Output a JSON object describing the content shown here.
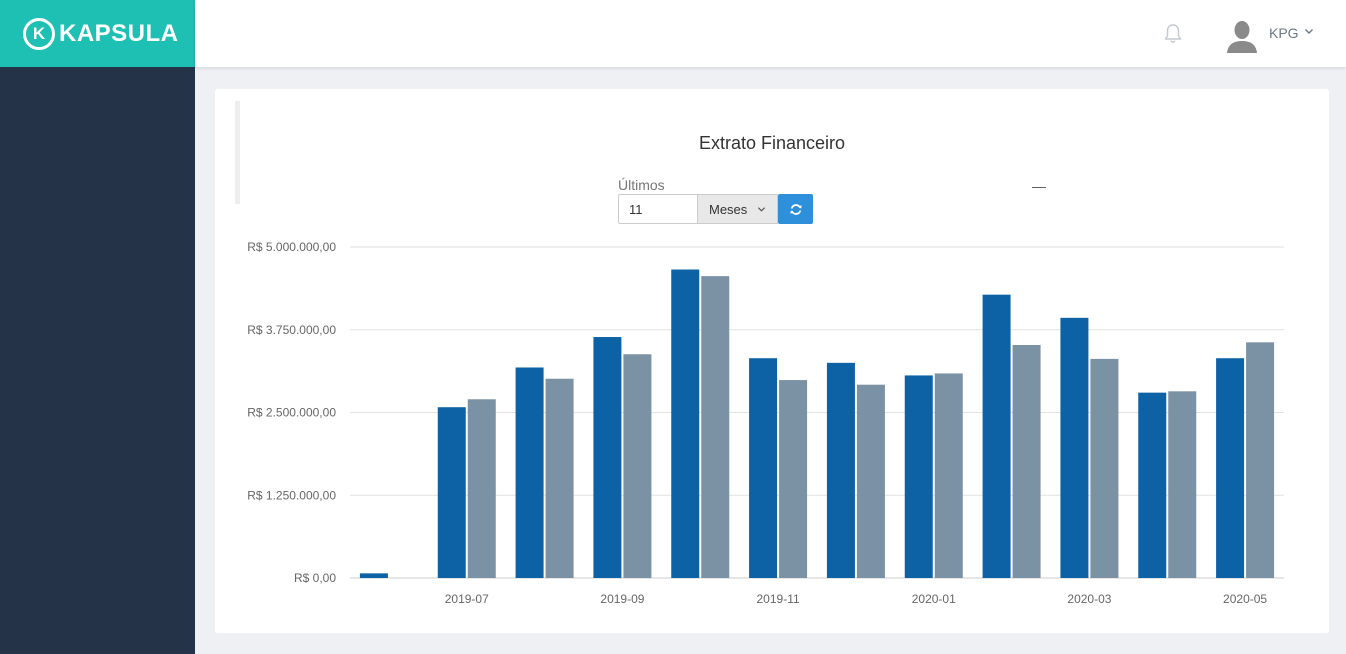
{
  "brand": {
    "name": "KAPSULA",
    "mark": "K"
  },
  "header": {
    "user": "KPG"
  },
  "filters": {
    "label": "Últimos",
    "months_value": "11",
    "unit_selected": "Meses",
    "range_separator": "—"
  },
  "colors": {
    "series_primary": "#0d62a6",
    "series_secondary": "#7b91a4",
    "teal": "#1fc0b4",
    "sidebar": "#253349",
    "refresh": "#2e8fdb"
  },
  "icons": {
    "notifications": "bell-icon",
    "user": "avatar",
    "dropdown": "chevron-down-icon",
    "refresh": "refresh-icon"
  },
  "chart_data": {
    "type": "bar",
    "title": "Extrato Financeiro",
    "categories": [
      "2019-06",
      "2019-07",
      "2019-08",
      "2019-09",
      "2019-10",
      "2019-11",
      "2019-12",
      "2020-01",
      "2020-02",
      "2020-03",
      "2020-04",
      "2020-05"
    ],
    "x_tick_labels": [
      "2019-07",
      "2019-09",
      "2019-11",
      "2020-01",
      "2020-03",
      "2020-05"
    ],
    "y_tick_labels": [
      "R$ 0,00",
      "R$ 1.250.000,00",
      "R$ 2.500.000,00",
      "R$ 3.750.000,00",
      "R$ 5.000.000,00"
    ],
    "y_ticks": [
      0,
      1250000,
      2500000,
      3750000,
      5000000
    ],
    "ylim": [
      0,
      5000000
    ],
    "series": [
      {
        "values": [
          70000,
          2580000,
          3180000,
          3640000,
          4660000,
          3320000,
          3250000,
          3060000,
          4280000,
          3930000,
          2800000,
          3320000
        ]
      },
      {
        "values": [
          null,
          2700000,
          3010000,
          3380000,
          4560000,
          2990000,
          2920000,
          3090000,
          3520000,
          3310000,
          2820000,
          3560000
        ]
      }
    ],
    "grid": true,
    "legend": "none"
  }
}
